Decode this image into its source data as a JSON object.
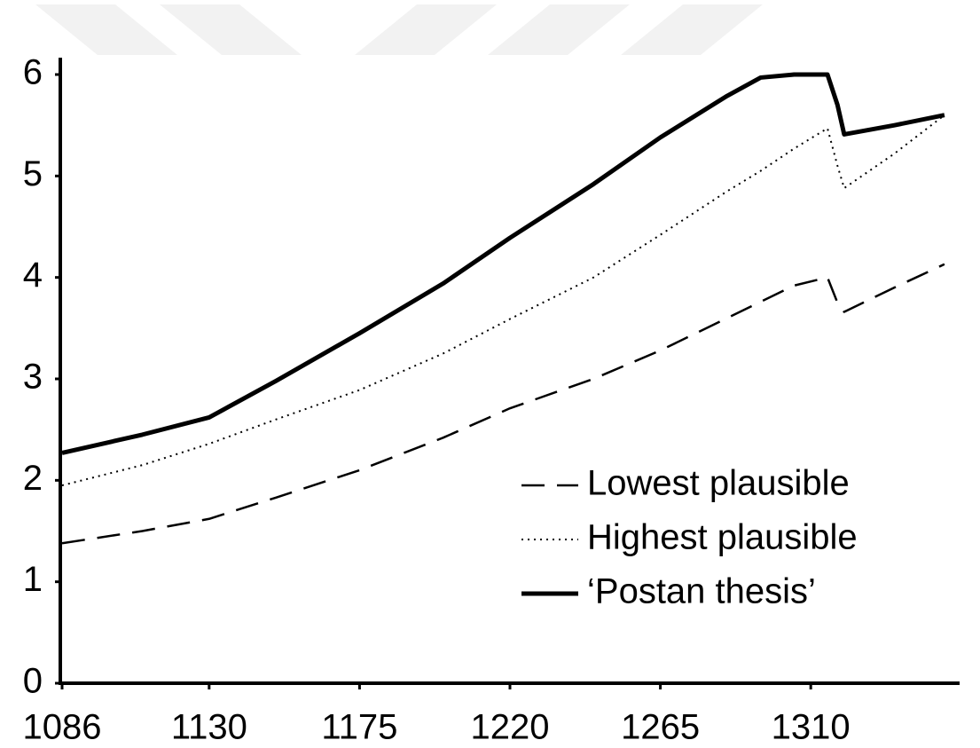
{
  "chart_data": {
    "type": "line",
    "x": [
      1086,
      1110,
      1130,
      1150,
      1175,
      1200,
      1220,
      1245,
      1265,
      1285,
      1295,
      1305,
      1315,
      1318,
      1320,
      1335,
      1350
    ],
    "series": [
      {
        "name": "Lowest plausible",
        "color": "#000000",
        "linestyle": "dashed",
        "values": [
          1.38,
          1.5,
          1.62,
          1.83,
          2.1,
          2.42,
          2.71,
          3.0,
          3.28,
          3.6,
          3.76,
          3.92,
          4.0,
          3.75,
          3.66,
          3.9,
          4.13
        ]
      },
      {
        "name": "Highest plausible",
        "color": "#000000",
        "linestyle": "dotted",
        "values": [
          1.95,
          2.15,
          2.36,
          2.6,
          2.89,
          3.25,
          3.59,
          4.0,
          4.42,
          4.85,
          5.05,
          5.27,
          5.47,
          5.1,
          4.88,
          5.22,
          5.6
        ]
      },
      {
        "name": "‘Postan thesis’",
        "color": "#000000",
        "linestyle": "solid",
        "values": [
          2.27,
          2.45,
          2.62,
          2.98,
          3.45,
          3.94,
          4.39,
          4.92,
          5.38,
          5.79,
          5.97,
          6.0,
          6.0,
          5.7,
          5.41,
          5.5,
          5.6
        ]
      }
    ],
    "xlim": [
      1086,
      1354
    ],
    "xticks": [
      1086,
      1130,
      1175,
      1220,
      1265,
      1310
    ],
    "ylim": [
      0,
      6
    ],
    "yticks": [
      0,
      1,
      2,
      3,
      4,
      5,
      6
    ],
    "grid": false,
    "legend": "lower right"
  }
}
